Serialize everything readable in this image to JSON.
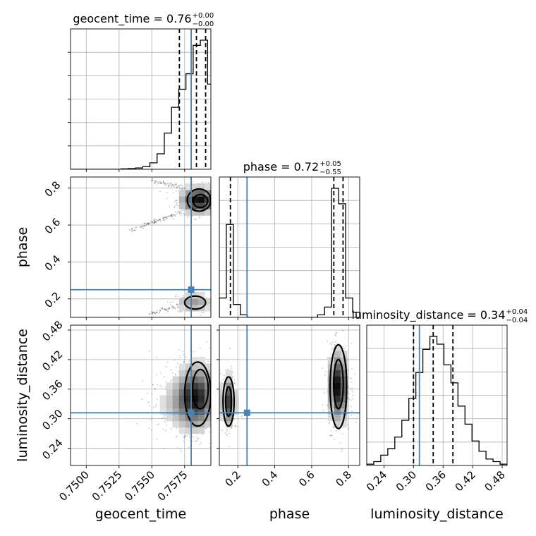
{
  "chart_data": {
    "type": "corner",
    "parameters": [
      "geocent_time",
      "phase",
      "luminosity_distance"
    ],
    "titles": [
      {
        "param": "geocent_time",
        "label": "geocent_time = 0.76",
        "plus": "+0.00",
        "minus": "−0.00"
      },
      {
        "param": "phase",
        "label": "phase = 0.72",
        "plus": "+0.05",
        "minus": "−0.55"
      },
      {
        "param": "luminosity_distance",
        "label": "luminosity_distance = 0.34",
        "plus": "+0.04",
        "minus": "−0.04"
      }
    ],
    "axis_labels": {
      "x": [
        "geocent_time",
        "phase",
        "luminosity_distance"
      ],
      "y": [
        "phase",
        "luminosity_distance"
      ]
    },
    "ranges": {
      "geocent_time": [
        0.7488,
        0.7595
      ],
      "phase": [
        0.1,
        0.86
      ],
      "luminosity_distance": [
        0.205,
        0.49
      ]
    },
    "ticks": {
      "geocent_time": {
        "values": [
          0.75,
          0.7525,
          0.755,
          0.7575
        ],
        "labels": [
          "0.7500",
          "0.7525",
          "0.7550",
          "0.7575"
        ]
      },
      "phase": {
        "values": [
          0.2,
          0.4,
          0.6,
          0.8
        ],
        "labels": [
          "0.2",
          "0.4",
          "0.6",
          "0.8"
        ]
      },
      "luminosity_distance": {
        "values": [
          0.24,
          0.3,
          0.36,
          0.42,
          0.48
        ],
        "labels": [
          "0.24",
          "0.30",
          "0.36",
          "0.42",
          "0.48"
        ]
      }
    },
    "injection": {
      "geocent_time": 0.758,
      "phase": 0.25,
      "luminosity_distance": 0.312
    },
    "quantiles": {
      "geocent_time": [
        0.7571,
        0.7584,
        0.7591
      ],
      "phase": [
        0.16,
        0.72,
        0.77
      ],
      "luminosity_distance": [
        0.3,
        0.34,
        0.38
      ]
    },
    "histograms": {
      "geocent_time": {
        "edges": [
          0.7488,
          0.74935,
          0.7499,
          0.75045,
          0.751,
          0.75155,
          0.7521,
          0.75265,
          0.7532,
          0.75375,
          0.7543,
          0.75485,
          0.7554,
          0.75595,
          0.7565,
          0.75705,
          0.7576,
          0.75815,
          0.7587,
          0.75925,
          0.7598
        ],
        "counts": [
          0,
          0,
          0,
          0,
          0,
          0,
          0,
          0.3,
          0.5,
          1,
          2,
          5,
          12,
          28,
          48,
          62,
          74,
          96,
          100,
          66
        ]
      },
      "phase": {
        "edges": [
          0.1,
          0.138,
          0.176,
          0.214,
          0.252,
          0.29,
          0.328,
          0.366,
          0.404,
          0.442,
          0.48,
          0.518,
          0.556,
          0.594,
          0.632,
          0.67,
          0.708,
          0.746,
          0.784,
          0.822,
          0.86
        ],
        "counts": [
          15,
          72,
          10,
          2,
          0,
          0,
          0,
          0,
          0,
          0,
          0,
          0,
          0,
          0,
          2,
          8,
          100,
          88,
          15,
          4
        ]
      },
      "luminosity_distance": {
        "edges": [
          0.205,
          0.21925,
          0.2335,
          0.24775,
          0.262,
          0.27625,
          0.2905,
          0.30475,
          0.319,
          0.33325,
          0.3475,
          0.36175,
          0.376,
          0.39025,
          0.4045,
          0.41875,
          0.433,
          0.44725,
          0.4615,
          0.47575,
          0.49
        ],
        "counts": [
          1,
          3,
          8,
          13,
          22,
          35,
          52,
          72,
          90,
          100,
          94,
          78,
          64,
          46,
          32,
          19,
          11,
          5,
          3,
          1
        ]
      }
    },
    "samples_2d": {
      "phase_vs_geocent_time": {
        "modes": [
          {
            "x": 0.7586,
            "y": 0.735,
            "sx": 0.00085,
            "sy": 0.04,
            "n": 520
          },
          {
            "x": 0.7582,
            "y": 0.18,
            "sx": 0.00085,
            "sy": 0.03,
            "n": 160
          }
        ],
        "streaks": [
          {
            "x0": 0.7548,
            "y0": 0.84,
            "x1": 0.7592,
            "y1": 0.78,
            "n": 90
          },
          {
            "x0": 0.7533,
            "y0": 0.57,
            "x1": 0.7592,
            "y1": 0.72,
            "n": 120
          },
          {
            "x0": 0.7548,
            "y0": 0.12,
            "x1": 0.7592,
            "y1": 0.2,
            "n": 70
          }
        ],
        "contours": [
          {
            "cx": 0.7586,
            "cy": 0.735,
            "rx": 0.0009,
            "ry": 0.06
          },
          {
            "cx": 0.7587,
            "cy": 0.73,
            "rx": 0.00055,
            "ry": 0.035
          },
          {
            "cx": 0.7583,
            "cy": 0.18,
            "rx": 0.0008,
            "ry": 0.035
          }
        ]
      },
      "luminosity_distance_vs_geocent_time": {
        "modes": [
          {
            "x": 0.7584,
            "y": 0.345,
            "sx": 0.0009,
            "sy": 0.038,
            "n": 900
          },
          {
            "x": 0.7572,
            "y": 0.33,
            "sx": 0.0012,
            "sy": 0.03,
            "n": 260
          }
        ],
        "contours": [
          {
            "cx": 0.7585,
            "cy": 0.35,
            "rx": 0.001,
            "ry": 0.065
          },
          {
            "cx": 0.7587,
            "cy": 0.36,
            "rx": 0.0006,
            "ry": 0.04
          }
        ]
      },
      "luminosity_distance_vs_phase": {
        "modes": [
          {
            "x": 0.15,
            "y": 0.335,
            "sx": 0.022,
            "sy": 0.03,
            "n": 260
          },
          {
            "x": 0.745,
            "y": 0.365,
            "sx": 0.03,
            "sy": 0.042,
            "n": 620
          }
        ],
        "contours": [
          {
            "cx": 0.15,
            "cy": 0.335,
            "rx": 0.03,
            "ry": 0.05
          },
          {
            "cx": 0.15,
            "cy": 0.335,
            "rx": 0.016,
            "ry": 0.03
          },
          {
            "cx": 0.745,
            "cy": 0.365,
            "rx": 0.045,
            "ry": 0.085
          },
          {
            "cx": 0.745,
            "cy": 0.37,
            "rx": 0.026,
            "ry": 0.05
          }
        ]
      }
    }
  },
  "colors": {
    "truth": "#4682b4",
    "contour": "#000000",
    "sample": "#000000",
    "grid": "#b0b0b0"
  }
}
